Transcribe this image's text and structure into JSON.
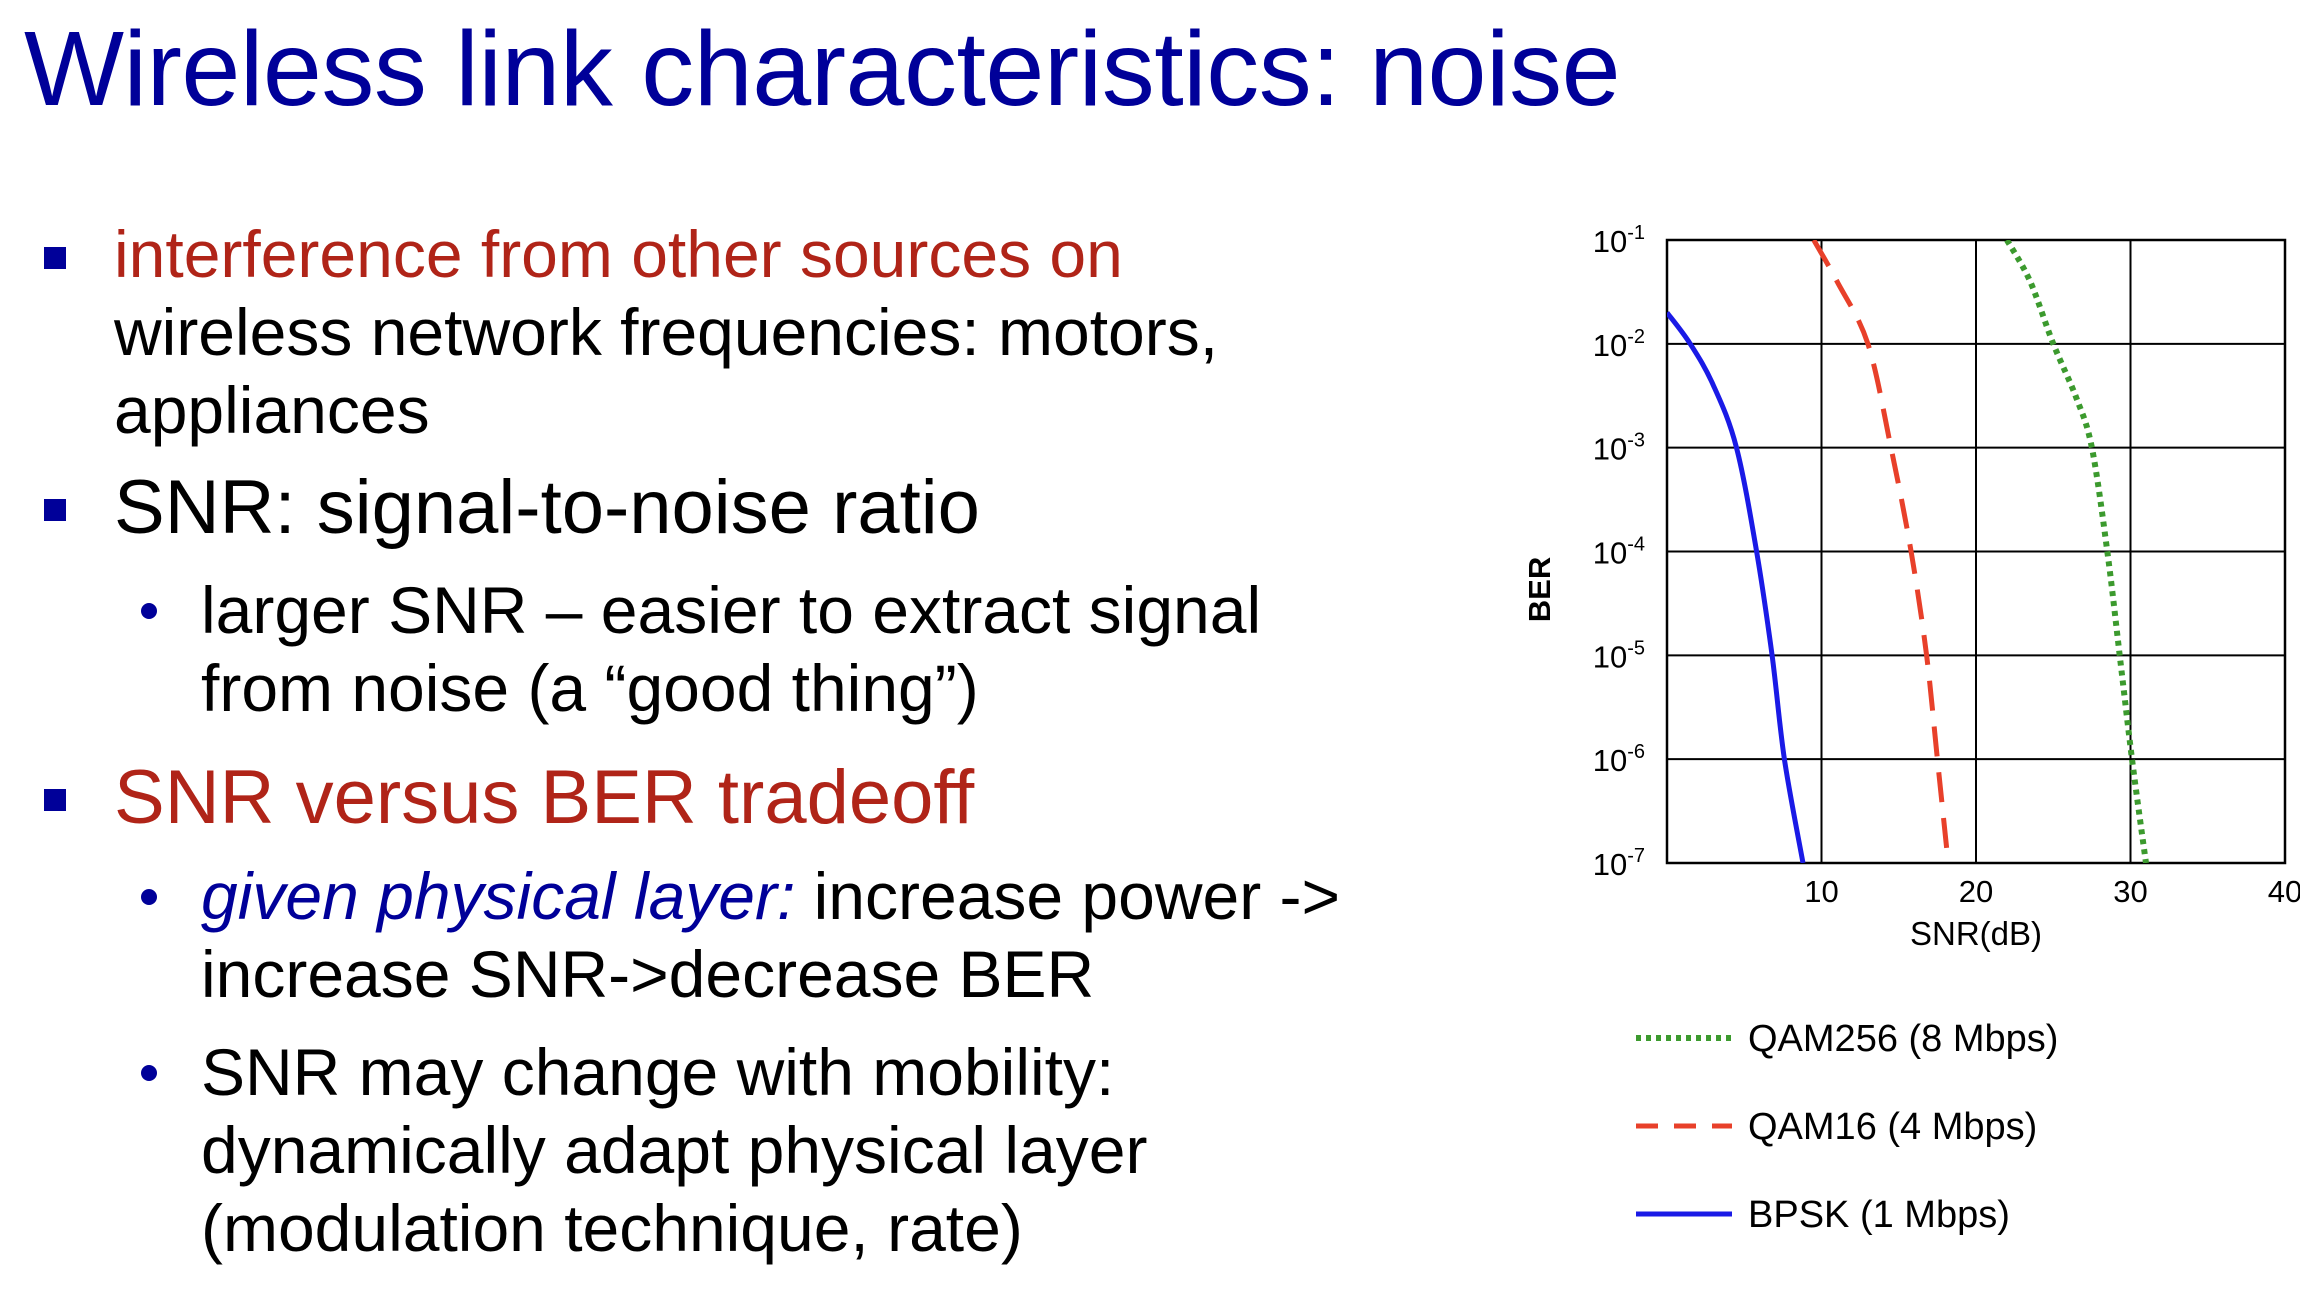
{
  "slide": {
    "title": "Wireless link characteristics: noise",
    "bullet1": {
      "highlight": "interference from other sources on",
      "rest_line2": "wireless network frequencies: motors,",
      "rest_line3": "appliances"
    },
    "bullet2": {
      "text": "SNR: signal-to-noise ratio",
      "sub1_line1": "larger SNR – easier to extract signal",
      "sub1_line2": "from noise (a “good thing”)"
    },
    "bullet3": {
      "text": "SNR versus BER tradeoff",
      "sub1_italic": "given physical layer:",
      "sub1_rest": " increase power ->",
      "sub1_line2": "increase SNR->decrease BER",
      "sub2_line1": "SNR may change with mobility:",
      "sub2_line2": "dynamically adapt physical layer",
      "sub2_line3": "(modulation technique, rate)"
    }
  },
  "colors": {
    "title": "#000099",
    "highlight": "#b02418",
    "bpsk": "#1a1ae6",
    "qam16": "#e8402a",
    "qam256": "#3c9a2e"
  },
  "chart_data": {
    "type": "line",
    "xlabel": "SNR(dB)",
    "ylabel": "BER",
    "y_scale": "log",
    "xlim": [
      0,
      40
    ],
    "ylim": [
      1e-07,
      0.1
    ],
    "x_ticks": [
      "10",
      "20",
      "30",
      "40"
    ],
    "y_ticks": [
      {
        "base": "10",
        "exp": "-1"
      },
      {
        "base": "10",
        "exp": "-2"
      },
      {
        "base": "10",
        "exp": "-3"
      },
      {
        "base": "10",
        "exp": "-4"
      },
      {
        "base": "10",
        "exp": "-5"
      },
      {
        "base": "10",
        "exp": "-6"
      },
      {
        "base": "10",
        "exp": "-7"
      }
    ],
    "grid": true,
    "legend_position": "bottom",
    "series": [
      {
        "name": "QAM256 (8 Mbps)",
        "style": "dotted",
        "color": "#3c9a2e",
        "points": [
          [
            22,
            0.1
          ],
          [
            23.5,
            0.04
          ],
          [
            25,
            0.01
          ],
          [
            26.5,
            0.003
          ],
          [
            27.5,
            0.001
          ],
          [
            28.5,
            0.0001
          ],
          [
            29.3,
            1e-05
          ],
          [
            30.1,
            1e-06
          ],
          [
            31,
            1e-07
          ]
        ]
      },
      {
        "name": "QAM16 (4 Mbps)",
        "style": "dashed",
        "color": "#e8402a",
        "points": [
          [
            9.5,
            0.1
          ],
          [
            11,
            0.04
          ],
          [
            13,
            0.01
          ],
          [
            14.5,
            0.001
          ],
          [
            15.8,
            0.0001
          ],
          [
            16.8,
            1e-05
          ],
          [
            17.5,
            1e-06
          ],
          [
            18.2,
            1e-07
          ]
        ]
      },
      {
        "name": "BPSK (1 Mbps)",
        "style": "solid",
        "color": "#1a1ae6",
        "points": [
          [
            0,
            0.02
          ],
          [
            1.5,
            0.01
          ],
          [
            3,
            0.004
          ],
          [
            4.5,
            0.001
          ],
          [
            5.8,
            0.0001
          ],
          [
            6.8,
            1e-05
          ],
          [
            7.6,
            1e-06
          ],
          [
            8.8,
            1e-07
          ]
        ]
      }
    ]
  }
}
